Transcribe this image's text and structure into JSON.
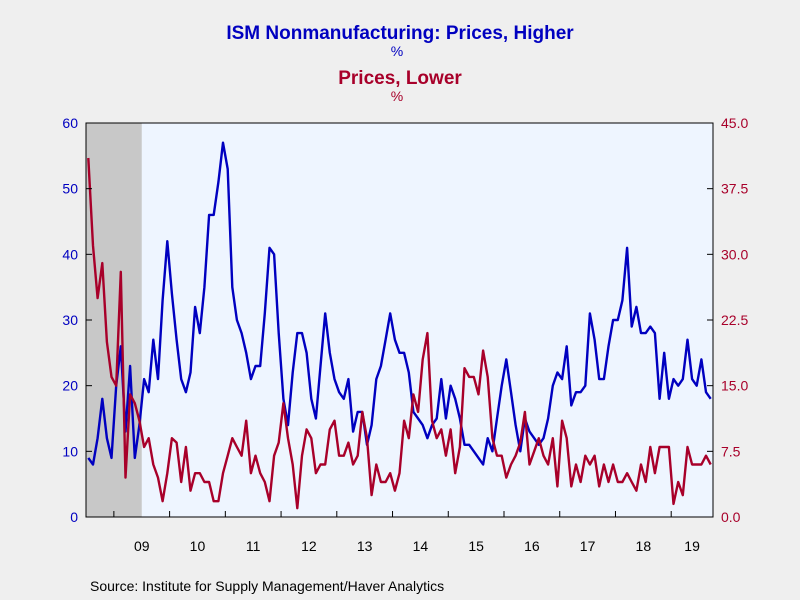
{
  "chart_data": {
    "type": "line",
    "title_line1": "ISM Nonmanufacturing: Prices, Higher",
    "title_line1_unit": "%",
    "title_line2": "Prices, Lower",
    "title_line2_unit": "%",
    "source": "Source:  Institute for Supply Management/Haver Analytics",
    "colors": {
      "higher": "#0000c0",
      "lower": "#a8002a",
      "plot_bg": "#eef5ff",
      "recession": "#c8c8c8",
      "page_bg": "#efefef"
    },
    "x_start": "2008-07",
    "x_end": "2019-09",
    "recession": [
      "2008-07",
      "2009-06"
    ],
    "x_tick_labels": [
      "09",
      "10",
      "11",
      "12",
      "13",
      "14",
      "15",
      "16",
      "17",
      "18",
      "19"
    ],
    "y_left": {
      "min": 0,
      "max": 60,
      "ticks": [
        "0",
        "10",
        "20",
        "30",
        "40",
        "50",
        "60"
      ]
    },
    "y_right": {
      "min": 0,
      "max": 45,
      "ticks": [
        "0.0",
        "7.5",
        "15.0",
        "22.5",
        "30.0",
        "37.5",
        "45.0"
      ]
    },
    "series": [
      {
        "axis": "left",
        "color_key": "higher",
        "values": [
          9,
          8,
          12,
          18,
          12,
          9,
          20,
          26,
          13,
          23,
          9,
          14,
          21,
          19,
          27,
          21,
          33,
          42,
          34,
          27,
          21,
          19,
          22,
          32,
          28,
          35,
          46,
          46,
          51,
          57,
          53,
          35,
          30,
          28,
          25,
          21,
          23,
          23,
          31,
          41,
          40,
          28,
          18,
          14,
          22,
          28,
          28,
          25,
          18,
          15,
          23,
          31,
          25,
          21,
          19,
          18,
          21,
          13,
          16,
          16,
          11,
          14,
          21,
          23,
          27,
          31,
          27,
          25,
          25,
          22,
          16,
          15,
          14,
          12,
          14,
          15,
          21,
          15,
          20,
          18,
          15,
          11,
          11,
          10,
          9,
          8,
          12,
          10,
          15,
          20,
          24,
          19,
          14,
          10,
          15,
          13,
          12,
          11,
          12,
          15,
          20,
          22,
          21,
          26,
          17,
          19,
          19,
          20,
          31,
          27,
          21,
          21,
          26,
          30,
          30,
          33,
          41,
          29,
          32,
          28,
          28,
          29,
          28,
          18,
          25,
          18,
          21,
          20,
          21,
          27,
          21,
          20,
          24,
          19,
          18
        ]
      },
      {
        "axis": "right",
        "color_key": "lower",
        "values": [
          41,
          31,
          25,
          29,
          20,
          16,
          15,
          28,
          4.5,
          14,
          13,
          11,
          8,
          9,
          6,
          4.5,
          1.8,
          5,
          9,
          8.5,
          4,
          8,
          3,
          5,
          5,
          4,
          4,
          1.8,
          1.8,
          5,
          7,
          9,
          8,
          7,
          11,
          5,
          7,
          5,
          4,
          1.8,
          7,
          8.5,
          13,
          9,
          6,
          1,
          7,
          10,
          9,
          5,
          6,
          6,
          10,
          11,
          7,
          7,
          8.5,
          6,
          7,
          12,
          9,
          2.5,
          6,
          4,
          4,
          5,
          3,
          5,
          11,
          9,
          14,
          12,
          18,
          21,
          11,
          9,
          10,
          7,
          10,
          5,
          8,
          17,
          16,
          16,
          14,
          19,
          16,
          9,
          7,
          7,
          4.5,
          6,
          7,
          8.5,
          12,
          6,
          7.5,
          9,
          7,
          6,
          9,
          3.5,
          11,
          9,
          3.5,
          6,
          4,
          7,
          6,
          7,
          3.5,
          6,
          4,
          6,
          4,
          4,
          5,
          4,
          3,
          6,
          4,
          8,
          5,
          8,
          8,
          8,
          1.5,
          4,
          2.5,
          8,
          6,
          6,
          6,
          7,
          6
        ]
      }
    ]
  }
}
